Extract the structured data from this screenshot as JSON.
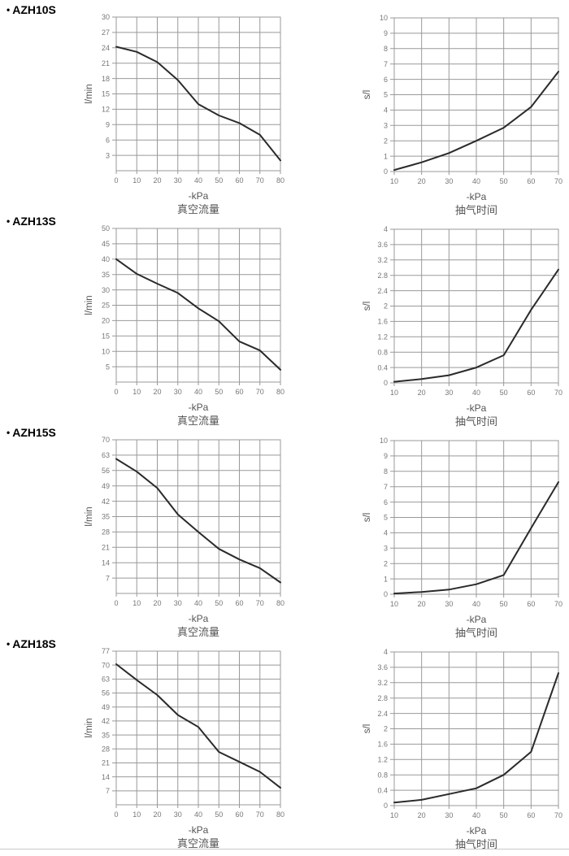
{
  "labels": {
    "bullet": "•"
  },
  "colors": {
    "background": "#ffffff",
    "grid": "#999999",
    "curve": "#2a2a2a",
    "tick_text": "#777777",
    "axis_text": "#555555",
    "model_text": "#000000",
    "divider": "#c9c9c9"
  },
  "rows": [
    {
      "model": "AZH10S"
    },
    {
      "model": "AZH13S"
    },
    {
      "model": "AZH15S"
    },
    {
      "model": "AZH18S"
    }
  ],
  "chart_data": [
    {
      "id": "azh10s-flow",
      "model": "AZH10S",
      "type": "line",
      "title": "真空流量",
      "xlabel": "-kPa",
      "ylabel": "l/min",
      "xlim": [
        0,
        80
      ],
      "ylim": [
        0,
        30
      ],
      "xticks": [
        0,
        10,
        20,
        30,
        40,
        50,
        60,
        70,
        80
      ],
      "yticks": [
        3,
        6,
        9,
        12,
        15,
        18,
        21,
        24,
        27,
        30
      ],
      "grid": true,
      "legend": "none",
      "x": [
        0,
        10,
        20,
        30,
        40,
        50,
        60,
        70,
        80
      ],
      "y": [
        24.2,
        23.2,
        21.2,
        17.7,
        13,
        10.8,
        9.3,
        7,
        2
      ]
    },
    {
      "id": "azh10s-time",
      "model": "AZH10S",
      "type": "line",
      "title": "抽气时间",
      "xlabel": "-kPa",
      "ylabel": "s/l",
      "xlim": [
        10,
        70
      ],
      "ylim": [
        0,
        10
      ],
      "xticks": [
        10,
        20,
        30,
        40,
        50,
        60,
        70
      ],
      "yticks": [
        0,
        1,
        2,
        3,
        4,
        5,
        6,
        7,
        8,
        9,
        10
      ],
      "grid": true,
      "legend": "none",
      "x": [
        10,
        20,
        30,
        40,
        50,
        60,
        70
      ],
      "y": [
        0.1,
        0.6,
        1.2,
        2,
        2.85,
        4.2,
        6.5
      ]
    },
    {
      "id": "azh13s-flow",
      "model": "AZH13S",
      "type": "line",
      "title": "真空流量",
      "xlabel": "-kPa",
      "ylabel": "l/min",
      "xlim": [
        0,
        80
      ],
      "ylim": [
        0,
        50
      ],
      "xticks": [
        0,
        10,
        20,
        30,
        40,
        50,
        60,
        70,
        80
      ],
      "yticks": [
        5,
        10,
        15,
        20,
        25,
        30,
        35,
        40,
        45,
        50
      ],
      "grid": true,
      "legend": "none",
      "x": [
        0,
        10,
        20,
        30,
        40,
        50,
        60,
        70,
        80
      ],
      "y": [
        40,
        35.2,
        32,
        29,
        24,
        19.8,
        13.2,
        10.3,
        4
      ]
    },
    {
      "id": "azh13s-time",
      "model": "AZH13S",
      "type": "line",
      "title": "抽气时间",
      "xlabel": "-kPa",
      "ylabel": "s/l",
      "xlim": [
        10,
        70
      ],
      "ylim": [
        0,
        4
      ],
      "xticks": [
        10,
        20,
        30,
        40,
        50,
        60,
        70
      ],
      "yticks": [
        0,
        0.4,
        0.8,
        1.2,
        1.6,
        2,
        2.4,
        2.8,
        3.2,
        3.6,
        4
      ],
      "grid": true,
      "legend": "none",
      "x": [
        10,
        20,
        30,
        40,
        50,
        60,
        70
      ],
      "y": [
        0.03,
        0.1,
        0.2,
        0.4,
        0.72,
        1.9,
        2.95
      ]
    },
    {
      "id": "azh15s-flow",
      "model": "AZH15S",
      "type": "line",
      "title": "真空流量",
      "xlabel": "-kPa",
      "ylabel": "l/min",
      "xlim": [
        0,
        80
      ],
      "ylim": [
        0,
        70
      ],
      "xticks": [
        0,
        10,
        20,
        30,
        40,
        50,
        60,
        70,
        80
      ],
      "yticks": [
        7,
        14,
        21,
        28,
        35,
        42,
        49,
        56,
        63,
        70
      ],
      "grid": true,
      "legend": "none",
      "x": [
        0,
        10,
        20,
        30,
        40,
        50,
        60,
        70,
        80
      ],
      "y": [
        61.3,
        55.5,
        48,
        36,
        28,
        20.3,
        15.5,
        11.5,
        5
      ]
    },
    {
      "id": "azh15s-time",
      "model": "AZH15S",
      "type": "line",
      "title": "抽气时间",
      "xlabel": "-kPa",
      "ylabel": "s/l",
      "xlim": [
        10,
        70
      ],
      "ylim": [
        0,
        10
      ],
      "xticks": [
        10,
        20,
        30,
        40,
        50,
        60,
        70
      ],
      "yticks": [
        0,
        1,
        2,
        3,
        4,
        5,
        6,
        7,
        8,
        9,
        10
      ],
      "grid": true,
      "legend": "none",
      "x": [
        10,
        20,
        30,
        40,
        50,
        60,
        70
      ],
      "y": [
        0.05,
        0.15,
        0.3,
        0.65,
        1.25,
        4.3,
        7.3
      ]
    },
    {
      "id": "azh18s-flow",
      "model": "AZH18S",
      "type": "line",
      "title": "真空流量",
      "xlabel": "-kPa",
      "ylabel": "l/min",
      "xlim": [
        0,
        80
      ],
      "ylim": [
        0,
        77
      ],
      "xticks": [
        0,
        10,
        20,
        30,
        40,
        50,
        60,
        70,
        80
      ],
      "yticks": [
        7,
        14,
        21,
        28,
        35,
        42,
        49,
        56,
        63,
        70,
        77
      ],
      "grid": true,
      "legend": "none",
      "x": [
        0,
        10,
        20,
        30,
        40,
        50,
        60,
        70,
        80
      ],
      "y": [
        70.5,
        62.5,
        55,
        45,
        39,
        26.5,
        21.5,
        16.5,
        8.5
      ]
    },
    {
      "id": "azh18s-time",
      "model": "AZH18S",
      "type": "line",
      "title": "抽气时间",
      "xlabel": "-kPa",
      "ylabel": "s/l",
      "xlim": [
        10,
        70
      ],
      "ylim": [
        0,
        4
      ],
      "xticks": [
        10,
        20,
        30,
        40,
        50,
        60,
        70
      ],
      "yticks": [
        0,
        0.4,
        0.8,
        1.2,
        1.6,
        2,
        2.4,
        2.8,
        3.2,
        3.6,
        4
      ],
      "grid": true,
      "legend": "none",
      "x": [
        10,
        20,
        30,
        40,
        50,
        60,
        70
      ],
      "y": [
        0.08,
        0.15,
        0.3,
        0.45,
        0.8,
        1.4,
        3.45
      ]
    }
  ]
}
